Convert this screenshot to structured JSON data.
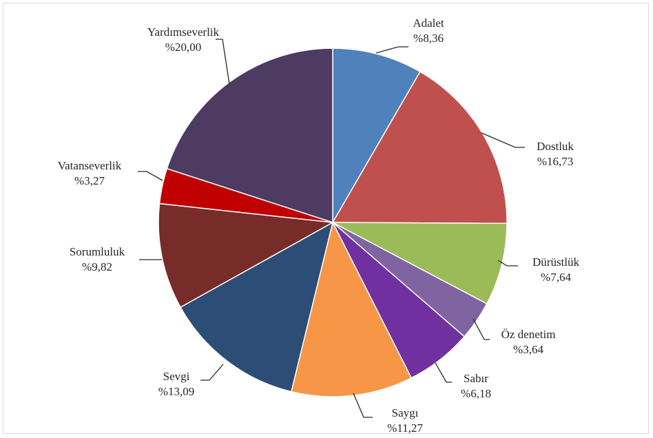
{
  "chart_data": {
    "type": "pie",
    "title": "",
    "start_angle_deg_clockwise_from_top": 0,
    "slices": [
      {
        "label": "Adalet",
        "value_text": "%8,36",
        "value": 8.36,
        "color": "#4f81bd"
      },
      {
        "label": "Dostluk",
        "value_text": "%16,73",
        "value": 16.73,
        "color": "#c0504d"
      },
      {
        "label": "Dürüstlük",
        "value_text": "%7,64",
        "value": 7.64,
        "color": "#9bbb59"
      },
      {
        "label": "Öz denetim",
        "value_text": "%3,64",
        "value": 3.64,
        "color": "#8064a2"
      },
      {
        "label": "Sabır",
        "value_text": "%6,18",
        "value": 6.18,
        "color": "#7030a0"
      },
      {
        "label": "Saygı",
        "value_text": "%11,27",
        "value": 11.27,
        "color": "#f79646"
      },
      {
        "label": "Sevgi",
        "value_text": "%13,09",
        "value": 13.09,
        "color": "#2c4d75"
      },
      {
        "label": "Sorumluluk",
        "value_text": "%9,82",
        "value": 9.82,
        "color": "#772c2a"
      },
      {
        "label": "Vatanseverlik",
        "value_text": "%3,27",
        "value": 3.27,
        "color": "#c00000"
      },
      {
        "label": "Yardımseverlik",
        "value_text": "%20,00",
        "value": 20.0,
        "color": "#4d3b62"
      }
    ]
  }
}
